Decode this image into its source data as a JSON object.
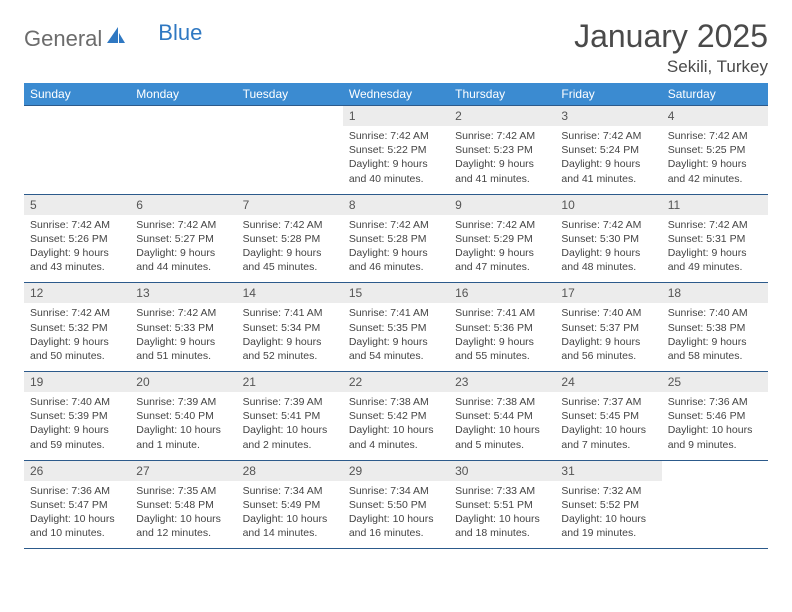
{
  "brand": {
    "part1": "General",
    "part2": "Blue"
  },
  "title": "January 2025",
  "location": "Sekili, Turkey",
  "colors": {
    "header_bg": "#3b8bd1",
    "row_border": "#2c5a8b",
    "daynum_bg": "#ececec",
    "text": "#3a3a3a",
    "brand_blue": "#2f78c2"
  },
  "day_headers": [
    "Sunday",
    "Monday",
    "Tuesday",
    "Wednesday",
    "Thursday",
    "Friday",
    "Saturday"
  ],
  "weeks": [
    [
      {
        "empty": true
      },
      {
        "empty": true
      },
      {
        "empty": true
      },
      {
        "n": "1",
        "sunrise": "7:42 AM",
        "sunset": "5:22 PM",
        "day_h": 9,
        "day_m": 40
      },
      {
        "n": "2",
        "sunrise": "7:42 AM",
        "sunset": "5:23 PM",
        "day_h": 9,
        "day_m": 41
      },
      {
        "n": "3",
        "sunrise": "7:42 AM",
        "sunset": "5:24 PM",
        "day_h": 9,
        "day_m": 41
      },
      {
        "n": "4",
        "sunrise": "7:42 AM",
        "sunset": "5:25 PM",
        "day_h": 9,
        "day_m": 42
      }
    ],
    [
      {
        "n": "5",
        "sunrise": "7:42 AM",
        "sunset": "5:26 PM",
        "day_h": 9,
        "day_m": 43
      },
      {
        "n": "6",
        "sunrise": "7:42 AM",
        "sunset": "5:27 PM",
        "day_h": 9,
        "day_m": 44
      },
      {
        "n": "7",
        "sunrise": "7:42 AM",
        "sunset": "5:28 PM",
        "day_h": 9,
        "day_m": 45
      },
      {
        "n": "8",
        "sunrise": "7:42 AM",
        "sunset": "5:28 PM",
        "day_h": 9,
        "day_m": 46
      },
      {
        "n": "9",
        "sunrise": "7:42 AM",
        "sunset": "5:29 PM",
        "day_h": 9,
        "day_m": 47
      },
      {
        "n": "10",
        "sunrise": "7:42 AM",
        "sunset": "5:30 PM",
        "day_h": 9,
        "day_m": 48
      },
      {
        "n": "11",
        "sunrise": "7:42 AM",
        "sunset": "5:31 PM",
        "day_h": 9,
        "day_m": 49
      }
    ],
    [
      {
        "n": "12",
        "sunrise": "7:42 AM",
        "sunset": "5:32 PM",
        "day_h": 9,
        "day_m": 50
      },
      {
        "n": "13",
        "sunrise": "7:42 AM",
        "sunset": "5:33 PM",
        "day_h": 9,
        "day_m": 51
      },
      {
        "n": "14",
        "sunrise": "7:41 AM",
        "sunset": "5:34 PM",
        "day_h": 9,
        "day_m": 52
      },
      {
        "n": "15",
        "sunrise": "7:41 AM",
        "sunset": "5:35 PM",
        "day_h": 9,
        "day_m": 54
      },
      {
        "n": "16",
        "sunrise": "7:41 AM",
        "sunset": "5:36 PM",
        "day_h": 9,
        "day_m": 55
      },
      {
        "n": "17",
        "sunrise": "7:40 AM",
        "sunset": "5:37 PM",
        "day_h": 9,
        "day_m": 56
      },
      {
        "n": "18",
        "sunrise": "7:40 AM",
        "sunset": "5:38 PM",
        "day_h": 9,
        "day_m": 58
      }
    ],
    [
      {
        "n": "19",
        "sunrise": "7:40 AM",
        "sunset": "5:39 PM",
        "day_h": 9,
        "day_m": 59
      },
      {
        "n": "20",
        "sunrise": "7:39 AM",
        "sunset": "5:40 PM",
        "day_h": 10,
        "day_m": 1
      },
      {
        "n": "21",
        "sunrise": "7:39 AM",
        "sunset": "5:41 PM",
        "day_h": 10,
        "day_m": 2
      },
      {
        "n": "22",
        "sunrise": "7:38 AM",
        "sunset": "5:42 PM",
        "day_h": 10,
        "day_m": 4
      },
      {
        "n": "23",
        "sunrise": "7:38 AM",
        "sunset": "5:44 PM",
        "day_h": 10,
        "day_m": 5
      },
      {
        "n": "24",
        "sunrise": "7:37 AM",
        "sunset": "5:45 PM",
        "day_h": 10,
        "day_m": 7
      },
      {
        "n": "25",
        "sunrise": "7:36 AM",
        "sunset": "5:46 PM",
        "day_h": 10,
        "day_m": 9
      }
    ],
    [
      {
        "n": "26",
        "sunrise": "7:36 AM",
        "sunset": "5:47 PM",
        "day_h": 10,
        "day_m": 10
      },
      {
        "n": "27",
        "sunrise": "7:35 AM",
        "sunset": "5:48 PM",
        "day_h": 10,
        "day_m": 12
      },
      {
        "n": "28",
        "sunrise": "7:34 AM",
        "sunset": "5:49 PM",
        "day_h": 10,
        "day_m": 14
      },
      {
        "n": "29",
        "sunrise": "7:34 AM",
        "sunset": "5:50 PM",
        "day_h": 10,
        "day_m": 16
      },
      {
        "n": "30",
        "sunrise": "7:33 AM",
        "sunset": "5:51 PM",
        "day_h": 10,
        "day_m": 18
      },
      {
        "n": "31",
        "sunrise": "7:32 AM",
        "sunset": "5:52 PM",
        "day_h": 10,
        "day_m": 19
      },
      {
        "empty": true
      }
    ]
  ]
}
